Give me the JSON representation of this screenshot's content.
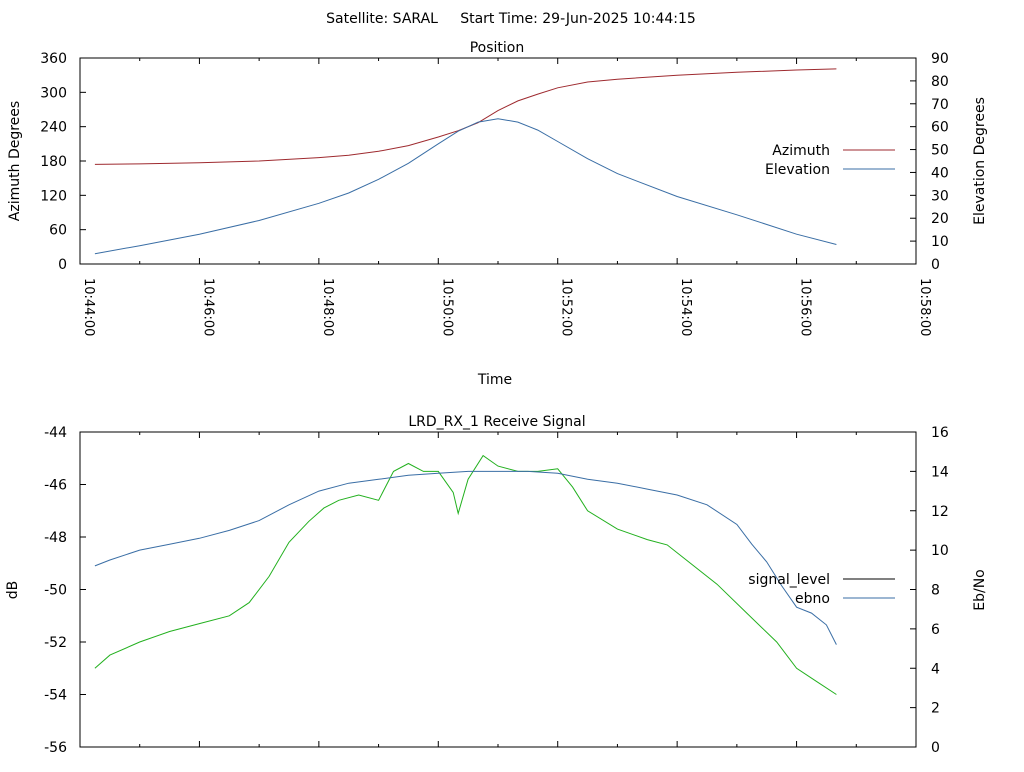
{
  "header": {
    "title": "Satellite: SARAL     Start Time: 29-Jun-2025 10:44:15"
  },
  "chart_data": [
    {
      "type": "line",
      "title": "Position",
      "xlabel": "Time",
      "ylabel": "Azimuth Degrees",
      "y2label": "Elevation Degrees",
      "xlim": [
        "10:44:00",
        "10:58:00"
      ],
      "ylim": [
        0,
        360
      ],
      "y2lim": [
        0,
        90
      ],
      "x_tick_labels": [
        "10:44:00",
        "10:46:00",
        "10:48:00",
        "10:50:00",
        "10:52:00",
        "10:54:00",
        "10:56:00",
        "10:58:00"
      ],
      "y_tick_labels": [
        "0",
        "60",
        "120",
        "180",
        "240",
        "300",
        "360"
      ],
      "y2_tick_labels": [
        "0",
        "10",
        "20",
        "30",
        "40",
        "50",
        "60",
        "70",
        "80",
        "90"
      ],
      "legend_position": "right",
      "grid": false,
      "series": [
        {
          "name": "Azimuth",
          "axis": "y",
          "color": "#9e2a2f",
          "x": [
            "10:44:15",
            "10:45:00",
            "10:46:00",
            "10:47:00",
            "10:48:00",
            "10:48:30",
            "10:49:00",
            "10:49:30",
            "10:50:00",
            "10:50:20",
            "10:50:40",
            "10:51:00",
            "10:51:20",
            "10:51:40",
            "10:52:00",
            "10:52:30",
            "10:53:00",
            "10:54:00",
            "10:55:00",
            "10:56:00",
            "10:56:40"
          ],
          "values": [
            174,
            175,
            177,
            180,
            186,
            190,
            197,
            207,
            222,
            233,
            247,
            268,
            285,
            297,
            308,
            318,
            323,
            330,
            335,
            339,
            341
          ]
        },
        {
          "name": "Elevation",
          "axis": "y2",
          "color": "#3a6ea5",
          "x": [
            "10:44:15",
            "10:45:00",
            "10:46:00",
            "10:47:00",
            "10:48:00",
            "10:48:30",
            "10:49:00",
            "10:49:30",
            "10:50:00",
            "10:50:20",
            "10:50:40",
            "10:51:00",
            "10:51:20",
            "10:51:40",
            "10:52:00",
            "10:52:30",
            "10:53:00",
            "10:54:00",
            "10:55:00",
            "10:56:00",
            "10:56:40"
          ],
          "values": [
            4.5,
            8,
            13,
            19,
            26.5,
            31,
            37,
            44,
            52.5,
            58,
            62,
            63.5,
            62,
            58.5,
            53.5,
            46,
            39.5,
            29.5,
            21.5,
            13,
            8.5
          ]
        }
      ]
    },
    {
      "type": "line",
      "title": "LRD_RX_1 Receive Signal",
      "xlabel": "",
      "ylabel": "dB",
      "y2label": "Eb/No",
      "xlim": [
        "10:44:00",
        "10:58:00"
      ],
      "ylim": [
        -56,
        -44
      ],
      "y2lim": [
        0,
        16
      ],
      "y_tick_labels": [
        "-56",
        "-54",
        "-52",
        "-50",
        "-48",
        "-46",
        "-44"
      ],
      "y2_tick_labels": [
        "0",
        "2",
        "4",
        "6",
        "8",
        "10",
        "12",
        "14",
        "16"
      ],
      "legend_position": "right",
      "grid": false,
      "series": [
        {
          "name": "signal_level",
          "axis": "y",
          "color": "#22b01e",
          "legend_color": "#000000",
          "x": [
            "10:44:15",
            "10:44:30",
            "10:45:00",
            "10:45:30",
            "10:46:00",
            "10:46:30",
            "10:46:50",
            "10:47:10",
            "10:47:30",
            "10:47:50",
            "10:48:05",
            "10:48:20",
            "10:48:40",
            "10:49:00",
            "10:49:15",
            "10:49:30",
            "10:49:45",
            "10:50:00",
            "10:50:15",
            "10:50:20",
            "10:50:30",
            "10:50:45",
            "10:51:00",
            "10:51:20",
            "10:51:40",
            "10:52:00",
            "10:52:15",
            "10:52:30",
            "10:53:00",
            "10:53:30",
            "10:53:50",
            "10:54:10",
            "10:54:40",
            "10:55:10",
            "10:55:40",
            "10:56:00",
            "10:56:20",
            "10:56:40"
          ],
          "values": [
            -53,
            -52.5,
            -52,
            -51.6,
            -51.3,
            -51,
            -50.5,
            -49.5,
            -48.2,
            -47.4,
            -46.9,
            -46.6,
            -46.4,
            -46.6,
            -45.5,
            -45.2,
            -45.5,
            -45.5,
            -46.3,
            -47.1,
            -45.8,
            -44.9,
            -45.3,
            -45.5,
            -45.5,
            -45.4,
            -46.1,
            -47,
            -47.7,
            -48.1,
            -48.3,
            -48.9,
            -49.8,
            -50.9,
            -52,
            -53,
            -53.5,
            -54
          ]
        },
        {
          "name": "ebno",
          "axis": "y2",
          "color": "#3a6ea5",
          "x": [
            "10:44:15",
            "10:44:30",
            "10:45:00",
            "10:45:30",
            "10:46:00",
            "10:46:30",
            "10:47:00",
            "10:47:30",
            "10:48:00",
            "10:48:30",
            "10:49:00",
            "10:49:30",
            "10:50:00",
            "10:50:30",
            "10:51:00",
            "10:51:30",
            "10:52:00",
            "10:52:30",
            "10:53:00",
            "10:53:30",
            "10:54:00",
            "10:54:30",
            "10:55:00",
            "10:55:15",
            "10:55:30",
            "10:55:45",
            "10:56:00",
            "10:56:15",
            "10:56:30",
            "10:56:40"
          ],
          "values": [
            9.2,
            9.5,
            10,
            10.3,
            10.6,
            11,
            11.5,
            12.3,
            13,
            13.4,
            13.6,
            13.8,
            13.9,
            14,
            14,
            14,
            13.9,
            13.6,
            13.4,
            13.1,
            12.8,
            12.3,
            11.3,
            10.3,
            9.4,
            8.2,
            7.1,
            6.8,
            6.2,
            5.2
          ]
        }
      ]
    }
  ]
}
